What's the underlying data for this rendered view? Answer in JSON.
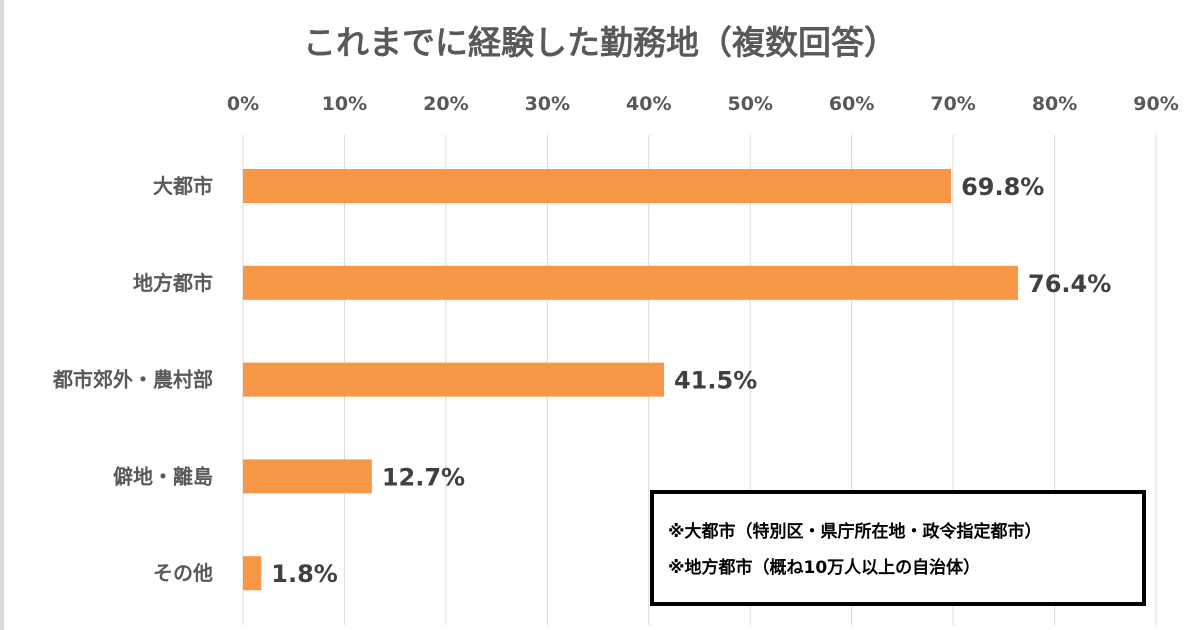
{
  "chart_data": {
    "type": "bar",
    "orientation": "horizontal",
    "title": "これまでに経験した勤務地（複数回答）",
    "categories": [
      "大都市",
      "地方都市",
      "都市郊外・農村部",
      "僻地・離島",
      "その他"
    ],
    "values": [
      69.8,
      76.4,
      41.5,
      12.7,
      1.8
    ],
    "data_labels": [
      "69.8%",
      "76.4%",
      "41.5%",
      "12.7%",
      "1.8%"
    ],
    "xlim": [
      0,
      90
    ],
    "x_ticks": [
      "0%",
      "10%",
      "20%",
      "30%",
      "40%",
      "50%",
      "60%",
      "70%",
      "80%",
      "90%"
    ],
    "x_axis_position": "top",
    "grid": true,
    "bar_color": "#F79646",
    "notes": [
      "※大都市（特別区・県庁所在地・政令指定都市）",
      "※地方都市（概ね10万人以上の自治体）"
    ]
  }
}
